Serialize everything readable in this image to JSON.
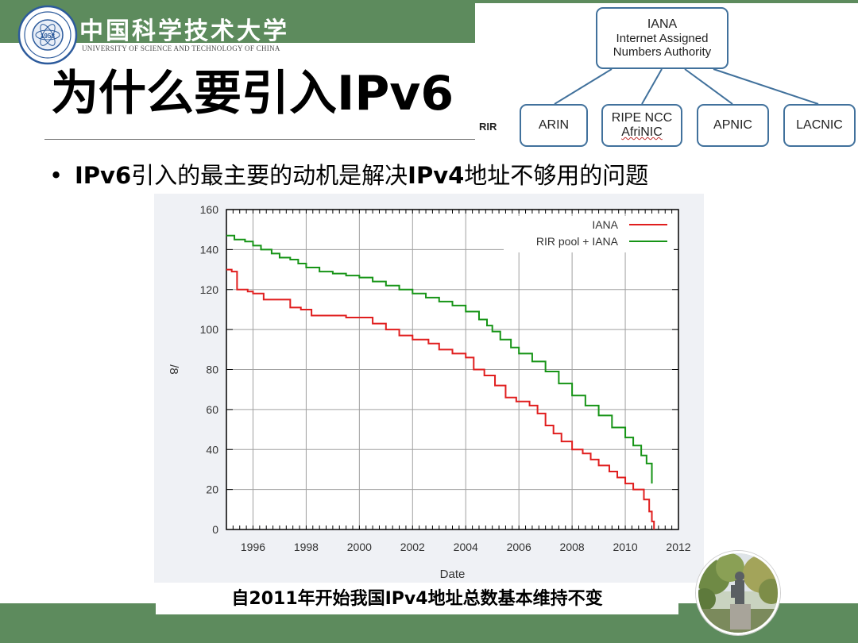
{
  "header": {
    "university_name_cn": "中国科学技术大学",
    "university_name_en": "UNIVERSITY OF SCIENCE AND TECHNOLOGY OF CHINA",
    "logo_icon": "university-seal-icon",
    "logo_year": "1958"
  },
  "slide": {
    "title": "为什么要引入IPv6",
    "bullet": {
      "prefix": "IPv6",
      "middle": "引入的最主要的动机是解决",
      "key": "IPv4",
      "suffix": "地址不够用的问题"
    },
    "caption": "自2011年开始我国IPv4地址总数基本维持不变"
  },
  "diagram": {
    "root": {
      "lines": [
        "IANA",
        "Internet Assigned",
        "Numbers Authority"
      ]
    },
    "level_label": "RIR",
    "children": [
      {
        "lines": [
          "ARIN"
        ]
      },
      {
        "lines": [
          "RIPE NCC",
          "AfriNIC"
        ]
      },
      {
        "lines": [
          "APNIC"
        ]
      },
      {
        "lines": [
          "LACNIC"
        ]
      }
    ]
  },
  "colors": {
    "band_green": "#5d8b5d",
    "diagram_border": "#41719c",
    "iana_series": "#e01e1e",
    "rir_series": "#169416"
  },
  "chart_data": {
    "type": "line",
    "title": "",
    "xlabel": "Date",
    "ylabel": "/8",
    "xlim": [
      1995,
      2012
    ],
    "ylim": [
      0,
      160
    ],
    "x_ticks": [
      1996,
      1998,
      2000,
      2002,
      2004,
      2006,
      2008,
      2010,
      2012
    ],
    "y_ticks": [
      0,
      20,
      40,
      60,
      80,
      100,
      120,
      140,
      160
    ],
    "grid": true,
    "legend_position": "top-right",
    "series": [
      {
        "name": "IANA",
        "color": "#e01e1e",
        "x": [
          1995.0,
          1995.2,
          1995.4,
          1995.8,
          1996.0,
          1996.4,
          1996.9,
          1997.4,
          1997.8,
          1998.2,
          1999.1,
          1999.5,
          2000.0,
          2000.5,
          2001.0,
          2001.5,
          2002.0,
          2002.6,
          2003.0,
          2003.5,
          2004.0,
          2004.3,
          2004.7,
          2005.1,
          2005.5,
          2005.9,
          2006.4,
          2006.7,
          2007.0,
          2007.3,
          2007.6,
          2008.0,
          2008.4,
          2008.7,
          2009.0,
          2009.4,
          2009.7,
          2010.0,
          2010.3,
          2010.7,
          2010.9,
          2011.0,
          2011.08
        ],
        "y": [
          130,
          129,
          120,
          119,
          118,
          115,
          115,
          111,
          110,
          107,
          107,
          106,
          106,
          103,
          100,
          97,
          95,
          93,
          90,
          88,
          86,
          80,
          77,
          72,
          66,
          64,
          62,
          58,
          52,
          48,
          44,
          40,
          38,
          35,
          32,
          29,
          26,
          23,
          20,
          15,
          9,
          4,
          0
        ]
      },
      {
        "name": "RIR pool + IANA",
        "color": "#169416",
        "x": [
          1995.0,
          1995.3,
          1995.7,
          1996.0,
          1996.3,
          1996.7,
          1997.0,
          1997.4,
          1997.7,
          1998.0,
          1998.5,
          1999.0,
          1999.5,
          2000.0,
          2000.5,
          2001.0,
          2001.5,
          2002.0,
          2002.5,
          2003.0,
          2003.5,
          2004.0,
          2004.5,
          2004.8,
          2005.0,
          2005.3,
          2005.7,
          2006.0,
          2006.5,
          2007.0,
          2007.5,
          2008.0,
          2008.5,
          2009.0,
          2009.5,
          2010.0,
          2010.3,
          2010.6,
          2010.8,
          2011.0
        ],
        "y": [
          147,
          145,
          144,
          142,
          140,
          138,
          136,
          135,
          133,
          131,
          129,
          128,
          127,
          126,
          124,
          122,
          120,
          118,
          116,
          114,
          112,
          109,
          105,
          102,
          99,
          95,
          91,
          88,
          84,
          79,
          73,
          67,
          62,
          57,
          51,
          46,
          42,
          37,
          33,
          23
        ]
      }
    ]
  }
}
